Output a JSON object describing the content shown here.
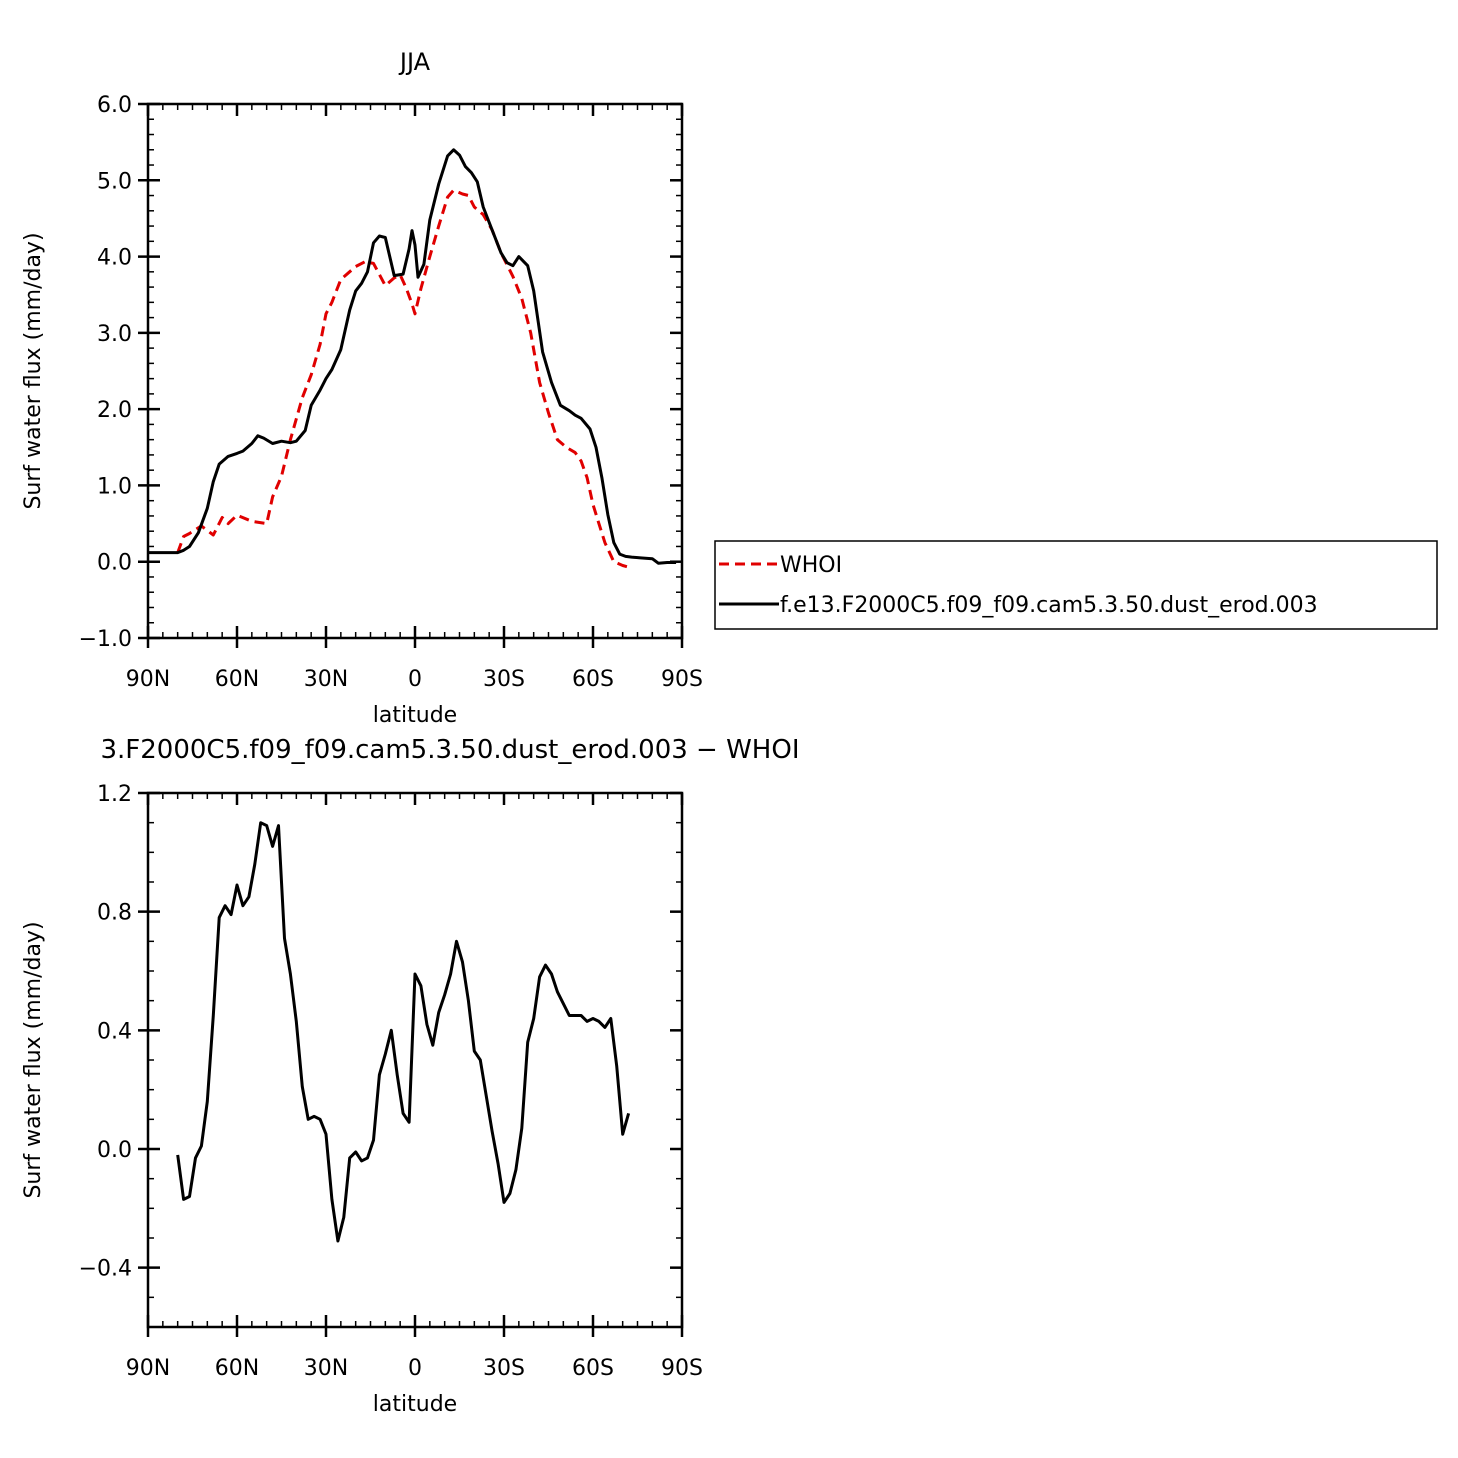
{
  "chart_data": [
    {
      "type": "line",
      "title": "JJA",
      "xlabel": "latitude",
      "ylabel": "Surf water flux (mm/day)",
      "xlim": [
        90,
        -90
      ],
      "ylim": [
        -1.0,
        6.0
      ],
      "x_ticks": [
        {
          "value": 90,
          "label": "90N"
        },
        {
          "value": 60,
          "label": "60N"
        },
        {
          "value": 30,
          "label": "30N"
        },
        {
          "value": 0,
          "label": "0"
        },
        {
          "value": -30,
          "label": "30S"
        },
        {
          "value": -60,
          "label": "60S"
        },
        {
          "value": -90,
          "label": "90S"
        }
      ],
      "y_ticks": [
        {
          "value": -1.0,
          "label": "−1.0"
        },
        {
          "value": 0.0,
          "label": "0.0"
        },
        {
          "value": 1.0,
          "label": "1.0"
        },
        {
          "value": 2.0,
          "label": "2.0"
        },
        {
          "value": 3.0,
          "label": "3.0"
        },
        {
          "value": 4.0,
          "label": "4.0"
        },
        {
          "value": 5.0,
          "label": "5.0"
        },
        {
          "value": 6.0,
          "label": "6.0"
        }
      ],
      "legend_position": "right",
      "grid": false,
      "series": [
        {
          "name": "WHOI",
          "color": "#e00000",
          "dash": true,
          "x": [
            80,
            78,
            76,
            72,
            68,
            65,
            63,
            60,
            55,
            50,
            48,
            45,
            42,
            38,
            35,
            32,
            30,
            28,
            25,
            20,
            17,
            14,
            10,
            7,
            5,
            3,
            1,
            0,
            -2,
            -5,
            -8,
            -11,
            -13,
            -16,
            -18,
            -20,
            -23,
            -26,
            -29,
            -33,
            -36,
            -39,
            -42,
            -45,
            -48,
            -51,
            -54,
            -56,
            -58,
            -60,
            -62,
            -64,
            -67,
            -70,
            -72
          ],
          "y": [
            0.12,
            0.33,
            0.37,
            0.47,
            0.35,
            0.58,
            0.5,
            0.61,
            0.53,
            0.5,
            0.85,
            1.12,
            1.6,
            2.15,
            2.45,
            2.85,
            3.25,
            3.4,
            3.7,
            3.87,
            3.93,
            3.91,
            3.62,
            3.72,
            3.76,
            3.59,
            3.38,
            3.25,
            3.58,
            4.0,
            4.4,
            4.78,
            4.87,
            4.82,
            4.8,
            4.65,
            4.55,
            4.35,
            4.05,
            3.74,
            3.45,
            3.0,
            2.35,
            1.95,
            1.6,
            1.5,
            1.43,
            1.32,
            1.1,
            0.75,
            0.5,
            0.25,
            0.0,
            -0.05,
            -0.07
          ]
        },
        {
          "name": "f.e13.F2000C5.f09_f09.cam5.3.50.dust_erod.003",
          "color": "#000000",
          "dash": false,
          "x": [
            90,
            84,
            80,
            78,
            76,
            73,
            70,
            68,
            66,
            63,
            60,
            58,
            55,
            53,
            51,
            48,
            45,
            42,
            40,
            37,
            35,
            32,
            30,
            28,
            25,
            22,
            20,
            18,
            16,
            14,
            12,
            10,
            7,
            4,
            2,
            1,
            0,
            -1,
            -3,
            -5,
            -8,
            -11,
            -13,
            -15,
            -17,
            -19,
            -21,
            -23,
            -26,
            -29,
            -31,
            -33,
            -35,
            -38,
            -40,
            -43,
            -46,
            -49,
            -52,
            -54,
            -56,
            -59,
            -61,
            -63,
            -65,
            -67,
            -69,
            -71,
            -73,
            -76,
            -80,
            -82,
            -85,
            -88
          ],
          "y": [
            0.12,
            0.12,
            0.12,
            0.15,
            0.2,
            0.38,
            0.7,
            1.05,
            1.28,
            1.38,
            1.42,
            1.45,
            1.55,
            1.65,
            1.62,
            1.55,
            1.58,
            1.56,
            1.58,
            1.72,
            2.05,
            2.25,
            2.4,
            2.52,
            2.78,
            3.3,
            3.55,
            3.65,
            3.8,
            4.18,
            4.27,
            4.25,
            3.75,
            3.77,
            4.1,
            4.34,
            4.15,
            3.73,
            3.9,
            4.48,
            4.95,
            5.32,
            5.4,
            5.33,
            5.18,
            5.1,
            4.98,
            4.65,
            4.35,
            4.05,
            3.92,
            3.88,
            4.0,
            3.88,
            3.55,
            2.75,
            2.35,
            2.05,
            1.98,
            1.92,
            1.88,
            1.74,
            1.5,
            1.1,
            0.62,
            0.25,
            0.1,
            0.07,
            0.06,
            0.05,
            0.04,
            -0.02,
            -0.01,
            -0.01
          ]
        }
      ]
    },
    {
      "type": "line",
      "title": "3.F2000C5.f09_f09.cam5.3.50.dust_erod.003 − WHOI",
      "xlabel": "latitude",
      "ylabel": "Surf water flux (mm/day)",
      "xlim": [
        90,
        -90
      ],
      "ylim": [
        -0.6,
        1.2
      ],
      "x_ticks": [
        {
          "value": 90,
          "label": "90N"
        },
        {
          "value": 60,
          "label": "60N"
        },
        {
          "value": 30,
          "label": "30N"
        },
        {
          "value": 0,
          "label": "0"
        },
        {
          "value": -30,
          "label": "30S"
        },
        {
          "value": -60,
          "label": "60S"
        },
        {
          "value": -90,
          "label": "90S"
        }
      ],
      "y_ticks": [
        {
          "value": -0.4,
          "label": "−0.4"
        },
        {
          "value": 0.0,
          "label": "0.0"
        },
        {
          "value": 0.4,
          "label": "0.4"
        },
        {
          "value": 0.8,
          "label": "0.8"
        },
        {
          "value": 1.2,
          "label": "1.2"
        }
      ],
      "grid": false,
      "series": [
        {
          "color": "#000000",
          "dash": false,
          "x": [
            80,
            78,
            76,
            74,
            72,
            70,
            68,
            66,
            64,
            62,
            60,
            58,
            56,
            54,
            52,
            50,
            48,
            46,
            44,
            42,
            40,
            38,
            36,
            34,
            32,
            30,
            28,
            26,
            24,
            22,
            20,
            18,
            16,
            14,
            12,
            10,
            8,
            6,
            4,
            2,
            0,
            -2,
            -4,
            -6,
            -8,
            -10,
            -12,
            -14,
            -16,
            -18,
            -20,
            -22,
            -24,
            -26,
            -28,
            -30,
            -32,
            -34,
            -36,
            -38,
            -40,
            -42,
            -44,
            -46,
            -48,
            -50,
            -52,
            -54,
            -56,
            -58,
            -60,
            -62,
            -64,
            -66,
            -68,
            -70,
            -72
          ],
          "y": [
            -0.02,
            -0.17,
            -0.16,
            -0.03,
            0.01,
            0.16,
            0.45,
            0.78,
            0.82,
            0.79,
            0.89,
            0.82,
            0.85,
            0.96,
            1.1,
            1.09,
            1.02,
            1.09,
            0.71,
            0.59,
            0.43,
            0.21,
            0.1,
            0.11,
            0.1,
            0.05,
            -0.17,
            -0.31,
            -0.23,
            -0.03,
            -0.01,
            -0.04,
            -0.03,
            0.03,
            0.25,
            0.32,
            0.4,
            0.25,
            0.12,
            0.09,
            0.59,
            0.55,
            0.42,
            0.35,
            0.46,
            0.52,
            0.59,
            0.7,
            0.63,
            0.5,
            0.33,
            0.3,
            0.18,
            0.06,
            -0.05,
            -0.18,
            -0.15,
            -0.07,
            0.07,
            0.36,
            0.44,
            0.58,
            0.62,
            0.59,
            0.53,
            0.49,
            0.45,
            0.45,
            0.45,
            0.43,
            0.44,
            0.43,
            0.41,
            0.44,
            0.28,
            0.05,
            0.12
          ]
        }
      ]
    }
  ]
}
